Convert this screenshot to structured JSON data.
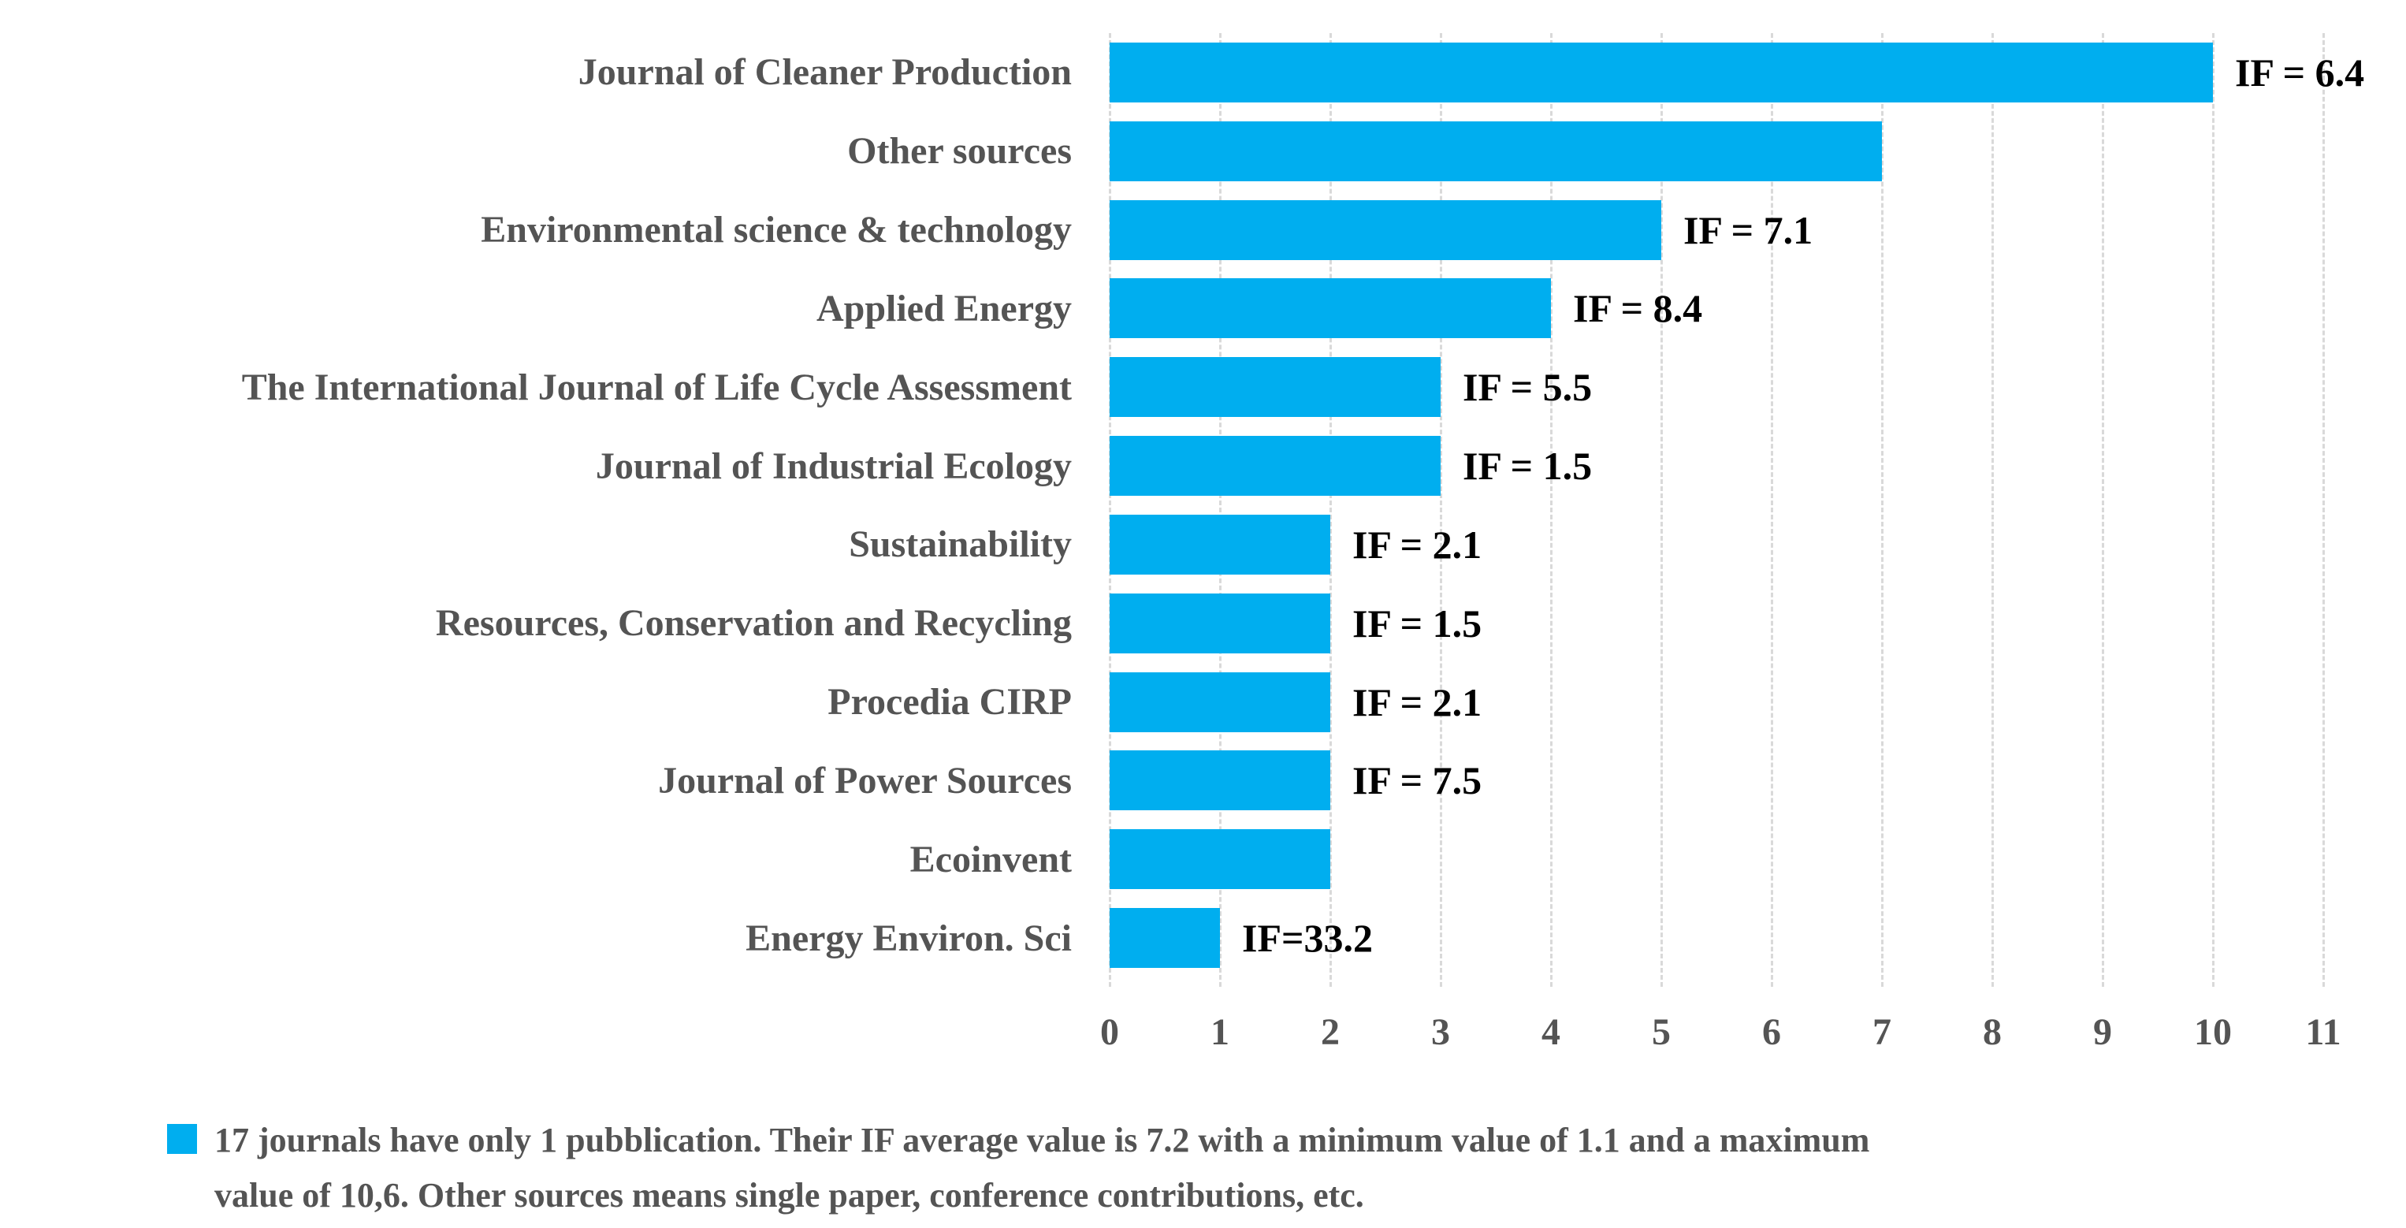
{
  "chart_data": {
    "type": "bar",
    "orientation": "horizontal",
    "title": "",
    "xlabel": "",
    "ylabel": "",
    "xlim": [
      0,
      11
    ],
    "x_ticks": [
      0,
      1,
      2,
      3,
      4,
      5,
      6,
      7,
      8,
      9,
      10,
      11
    ],
    "grid": true,
    "legend_position": "bottom",
    "bar_color": "#00AEEF",
    "gridline_color": "#D9D9D9",
    "text_color": "#545454",
    "annotation_color": "#000000",
    "categories": [
      "Journal of Cleaner Production",
      "Other sources",
      "Environmental science & technology",
      "Applied Energy",
      "The International Journal of Life Cycle Assessment",
      "Journal of Industrial Ecology",
      "Sustainability",
      "Resources, Conservation and Recycling",
      "Procedia CIRP",
      "Journal of Power Sources",
      "Ecoinvent",
      "Energy Environ. Sci"
    ],
    "values": [
      10,
      7,
      5,
      4,
      3,
      3,
      2,
      2,
      2,
      2,
      2,
      1
    ],
    "annotations": [
      "IF = 6.4",
      "",
      "IF = 7.1",
      "IF = 8.4",
      "IF = 5.5",
      "IF = 1.5",
      "IF = 2.1",
      "IF = 1.5",
      "IF = 2.1",
      "IF = 7.5",
      "",
      "IF=33.2"
    ],
    "legend": {
      "swatch_color": "#00AEEF",
      "text_lines": [
        "17 journals have only 1 pubblication. Their IF average value is 7.2 with a minimum value of 1.1 and a maximum",
        "value of 10,6. Other sources means single paper, conference contributions, etc."
      ]
    }
  }
}
